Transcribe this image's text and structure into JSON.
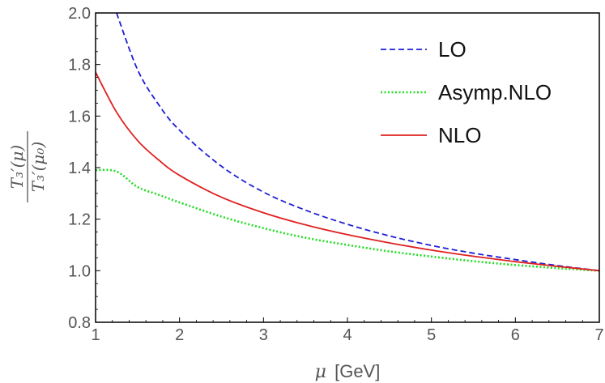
{
  "chart_data": {
    "type": "line",
    "xlabel_symbol": "μ",
    "xlabel_unit": "[GeV]",
    "ylabel": {
      "numerator": "T₃′(μ)",
      "denominator": "T₃′(μ₀)"
    },
    "xlim": [
      1,
      7
    ],
    "ylim": [
      0.8,
      2.0
    ],
    "x_ticks": [
      "1",
      "2",
      "3",
      "4",
      "5",
      "6",
      "7"
    ],
    "y_ticks": [
      "0.8",
      "1.0",
      "1.2",
      "1.4",
      "1.6",
      "1.8",
      "2.0"
    ],
    "grid": false,
    "legend_position": "top-right",
    "series": [
      {
        "name": "LO",
        "color": "#1f1fd6",
        "style": "dashed",
        "x": [
          1.25,
          1.5,
          1.75,
          2.0,
          2.5,
          3.0,
          3.5,
          4.0,
          4.5,
          5.0,
          5.5,
          6.0,
          6.5,
          7.0
        ],
        "y": [
          2.0,
          1.78,
          1.645,
          1.545,
          1.405,
          1.305,
          1.235,
          1.18,
          1.135,
          1.098,
          1.068,
          1.043,
          1.02,
          1.0
        ]
      },
      {
        "name": "Asymp.NLO",
        "color": "#22dd22",
        "style": "dotted",
        "x": [
          1.0,
          1.25,
          1.5,
          1.75,
          2.0,
          2.5,
          3.0,
          3.5,
          4.0,
          4.5,
          5.0,
          5.5,
          6.0,
          6.5,
          7.0
        ],
        "y": [
          1.39,
          1.385,
          1.325,
          1.295,
          1.265,
          1.21,
          1.165,
          1.128,
          1.1,
          1.075,
          1.055,
          1.037,
          1.022,
          1.01,
          1.0
        ]
      },
      {
        "name": "NLO",
        "color": "#e01f1f",
        "style": "solid",
        "x": [
          1.0,
          1.25,
          1.5,
          1.75,
          2.0,
          2.5,
          3.0,
          3.5,
          4.0,
          4.5,
          5.0,
          5.5,
          6.0,
          6.5,
          7.0
        ],
        "y": [
          1.77,
          1.615,
          1.505,
          1.43,
          1.37,
          1.285,
          1.225,
          1.178,
          1.14,
          1.108,
          1.08,
          1.056,
          1.035,
          1.017,
          1.0
        ]
      }
    ]
  }
}
